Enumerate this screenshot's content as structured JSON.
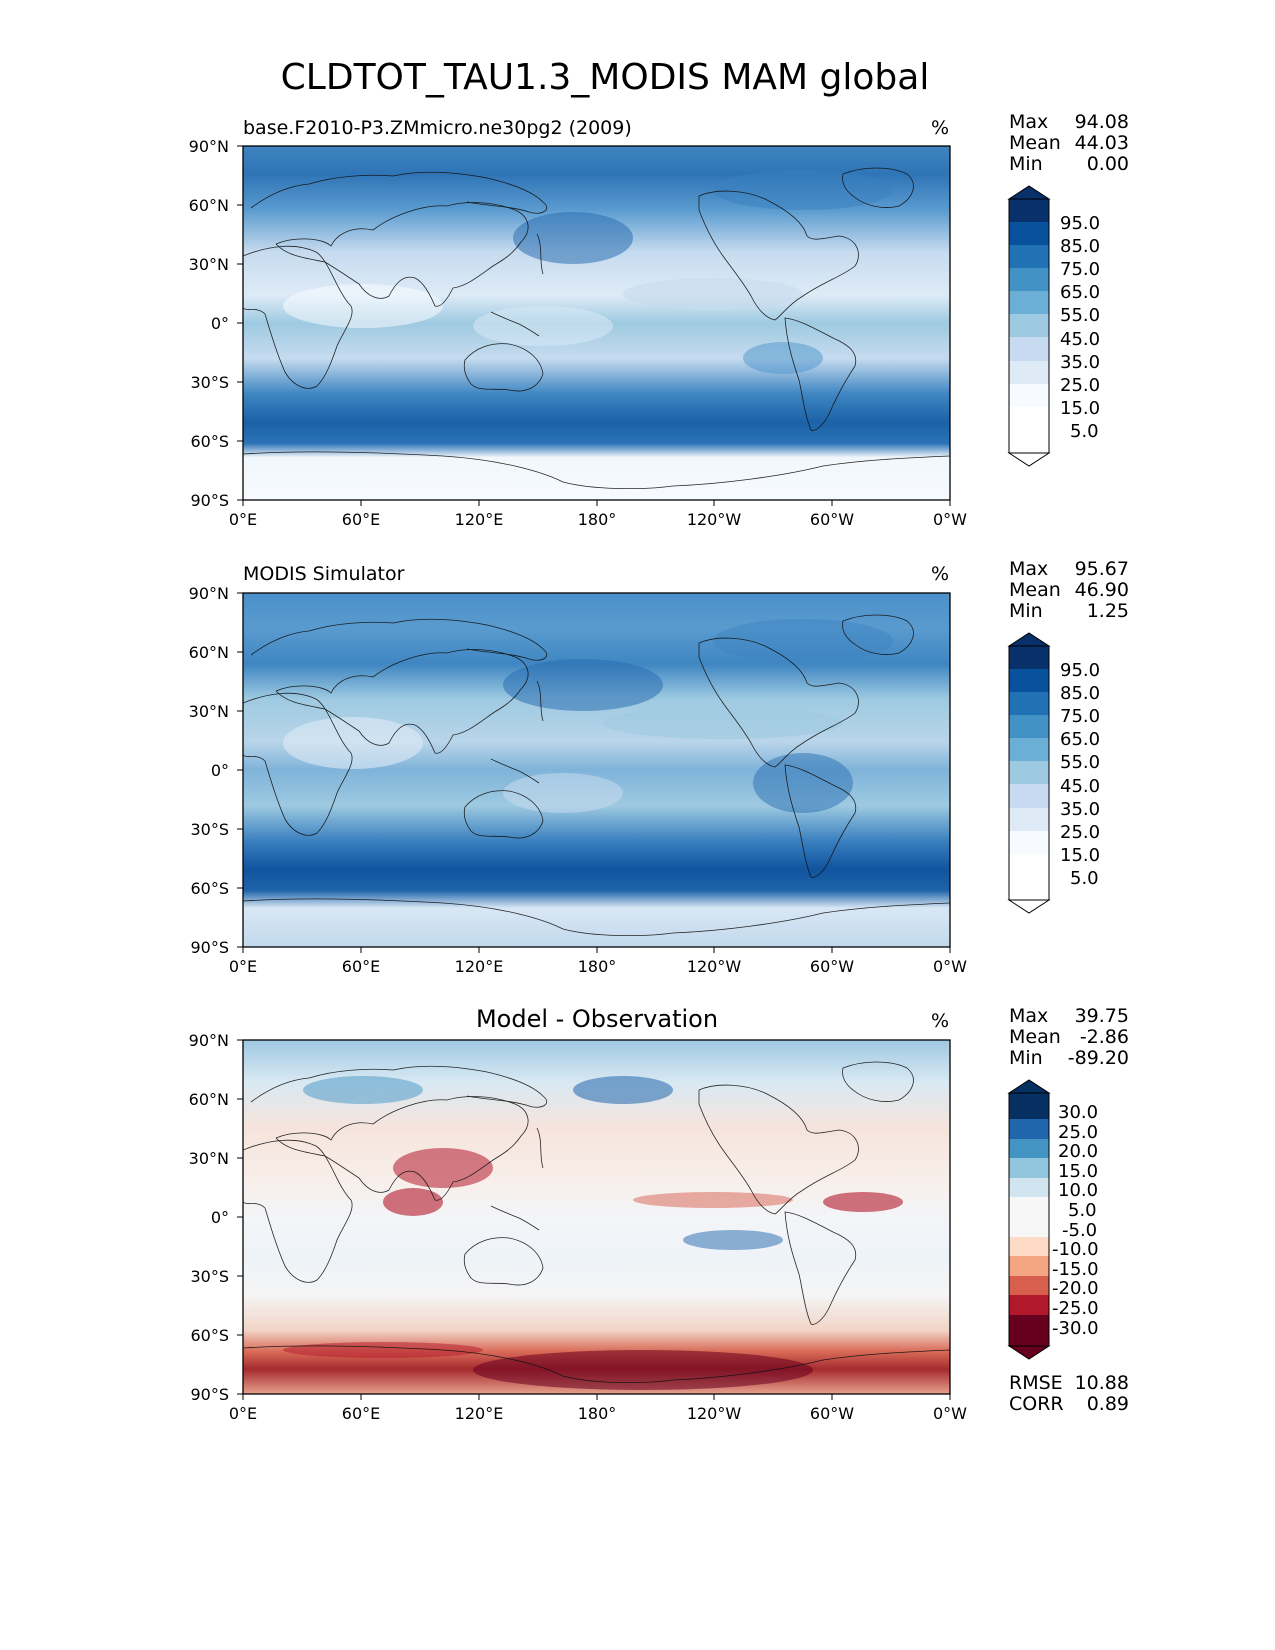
{
  "figure": {
    "title": "CLDTOT_TAU1.3_MODIS MAM global"
  },
  "axes": {
    "lon_ticks": [
      "0°E",
      "60°E",
      "120°E",
      "180°",
      "120°W",
      "60°W",
      "0°W"
    ],
    "lat_ticks": [
      "90°N",
      "60°N",
      "30°N",
      "0°",
      "30°S",
      "60°S",
      "90°S"
    ]
  },
  "chart_data": [
    {
      "type": "heatmap",
      "panel": "test",
      "title": "base.F2010-P3.ZMmicro.ne30pg2 (2009)",
      "units": "%",
      "stats": {
        "max_label": "Max",
        "max": "94.08",
        "mean_label": "Mean",
        "mean": "44.03",
        "min_label": "Min",
        "min": "0.00"
      },
      "colorbar": {
        "extend": "both",
        "labels": [
          "95.0",
          "85.0",
          "75.0",
          "65.0",
          "55.0",
          "45.0",
          "35.0",
          "25.0",
          "15.0",
          "5.0"
        ],
        "colors": [
          "#08306b",
          "#08519c",
          "#2171b5",
          "#4292c6",
          "#6baed6",
          "#9ecae1",
          "#c6dbef",
          "#deebf7",
          "#f7fbff",
          "#ffffff"
        ]
      },
      "xlim": [
        0,
        360
      ],
      "ylim": [
        -90,
        90
      ]
    },
    {
      "type": "heatmap",
      "panel": "reference",
      "title": "MODIS Simulator",
      "units": "%",
      "stats": {
        "max_label": "Max",
        "max": "95.67",
        "mean_label": "Mean",
        "mean": "46.90",
        "min_label": "Min",
        "min": "1.25"
      },
      "colorbar": {
        "extend": "both",
        "labels": [
          "95.0",
          "85.0",
          "75.0",
          "65.0",
          "55.0",
          "45.0",
          "35.0",
          "25.0",
          "15.0",
          "5.0"
        ],
        "colors": [
          "#08306b",
          "#08519c",
          "#2171b5",
          "#4292c6",
          "#6baed6",
          "#9ecae1",
          "#c6dbef",
          "#deebf7",
          "#f7fbff",
          "#ffffff"
        ]
      },
      "xlim": [
        0,
        360
      ],
      "ylim": [
        -90,
        90
      ]
    },
    {
      "type": "heatmap",
      "panel": "difference",
      "title": "Model - Observation",
      "units": "%",
      "stats": {
        "max_label": "Max",
        "max": "39.75",
        "mean_label": "Mean",
        "mean": "-2.86",
        "min_label": "Min",
        "min": "-89.20"
      },
      "metrics": {
        "rmse_label": "RMSE",
        "rmse": "10.88",
        "corr_label": "CORR",
        "corr": "0.89"
      },
      "colorbar": {
        "extend": "both",
        "labels": [
          "30.0",
          "25.0",
          "20.0",
          "15.0",
          "10.0",
          "5.0",
          "-5.0",
          "-10.0",
          "-15.0",
          "-20.0",
          "-25.0",
          "-30.0"
        ],
        "colors": [
          "#053061",
          "#2166ac",
          "#4393c3",
          "#92c5de",
          "#d1e5f0",
          "#f7f7f7",
          "#fddbc7",
          "#f4a582",
          "#d6604d",
          "#b2182b",
          "#67001f"
        ]
      },
      "xlim": [
        0,
        360
      ],
      "ylim": [
        -90,
        90
      ]
    }
  ]
}
